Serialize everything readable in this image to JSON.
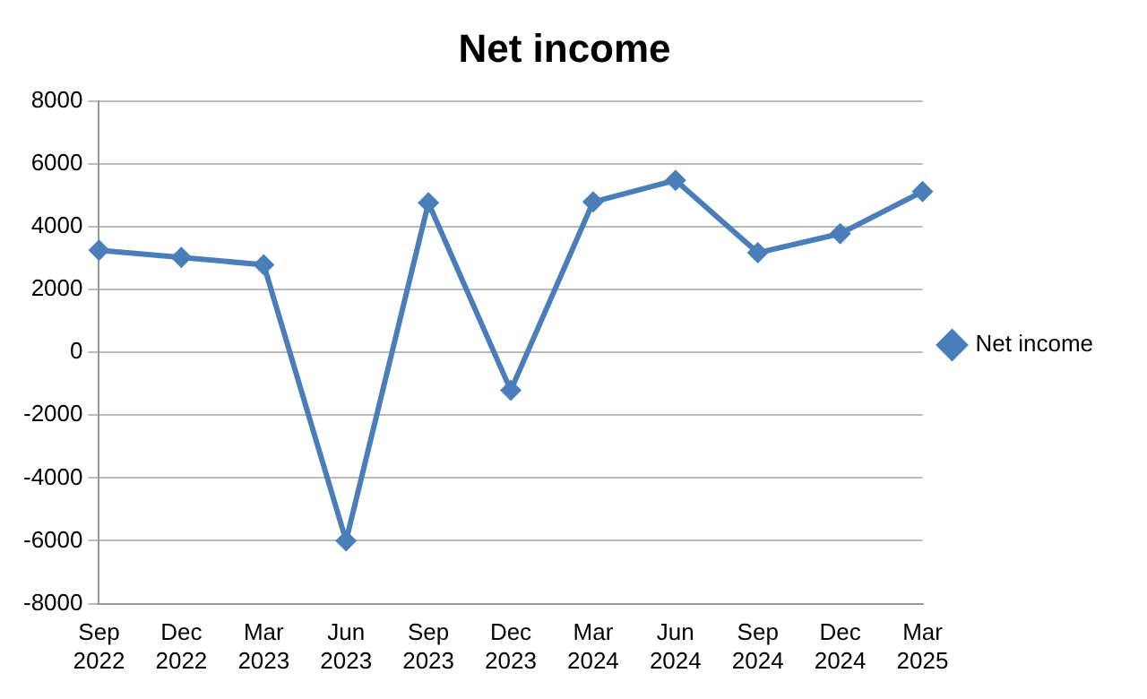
{
  "chart_data": {
    "type": "line",
    "title": "Net income",
    "categories": [
      "Sep 2022",
      "Dec 2022",
      "Mar 2023",
      "Jun 2023",
      "Sep 2023",
      "Dec 2023",
      "Mar 2024",
      "Jun 2024",
      "Sep 2024",
      "Dec 2024",
      "Mar 2025"
    ],
    "series": [
      {
        "name": "Net income",
        "color": "#4a7ebb",
        "values": [
          3250,
          3020,
          2790,
          -6000,
          4760,
          -1210,
          4790,
          5480,
          3170,
          3780,
          5120
        ]
      }
    ],
    "ylim": [
      -8000,
      8000
    ],
    "yticks": [
      -8000,
      -6000,
      -4000,
      -2000,
      0,
      2000,
      4000,
      6000,
      8000
    ],
    "grid": "y",
    "legend": "right",
    "marker": "diamond",
    "line_style": "solid"
  }
}
